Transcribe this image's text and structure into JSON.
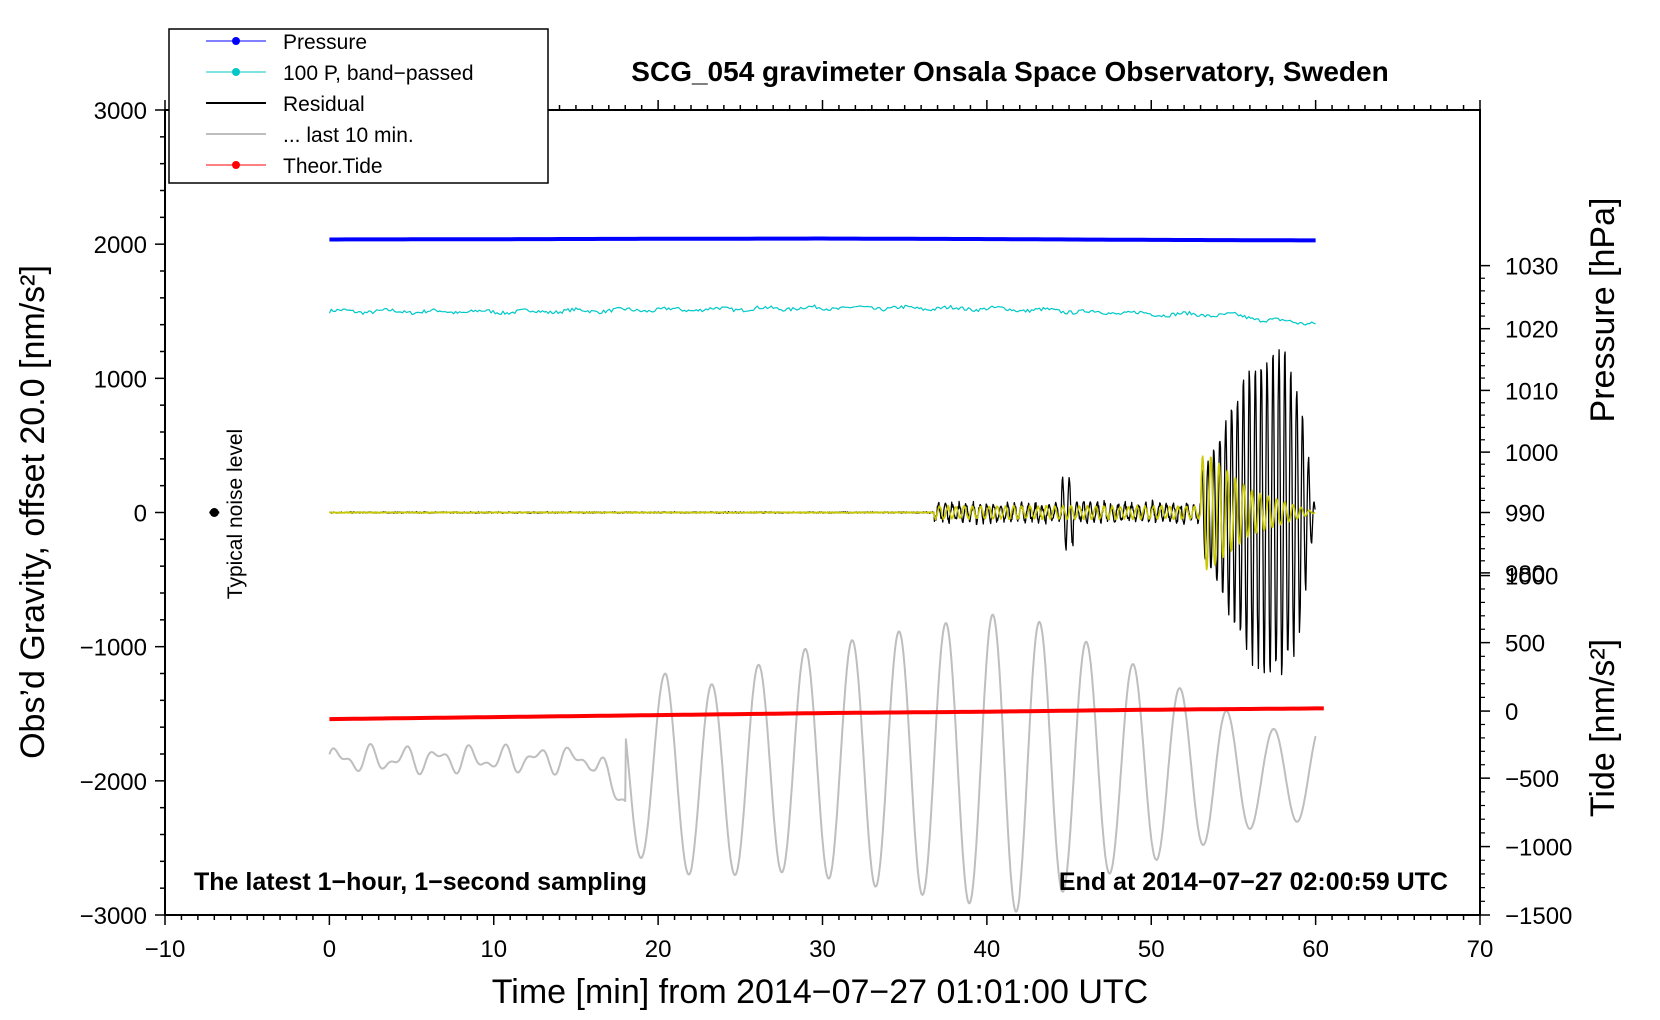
{
  "chart_data": {
    "type": "line",
    "title": "SCG_054 gravimeter Onsala Space Observatory, Sweden",
    "xlabel": "Time [min] from 2014−07−27 01:01:00 UTC",
    "ylabel": "Obs’d Gravity, offset 20.0 [nm/s²]",
    "xlim": [
      -10,
      70
    ],
    "ylim": [
      -3000,
      3000
    ],
    "x_ticks": [
      -10,
      0,
      10,
      20,
      30,
      40,
      50,
      60,
      70
    ],
    "x_tick_labels": [
      "−10",
      "0",
      "10",
      "20",
      "30",
      "40",
      "50",
      "60",
      "70"
    ],
    "y_ticks": [
      -3000,
      -2000,
      -1000,
      0,
      1000,
      2000,
      3000
    ],
    "y_tick_labels": [
      "−3000",
      "−2000",
      "−1000",
      "0",
      "1000",
      "2000",
      "3000"
    ],
    "right_axes": [
      {
        "label": "Pressure [hPa]",
        "ticks": [
          980,
          990,
          1000,
          1010,
          1020,
          1030
        ],
        "tick_labels": [
          "980",
          "990",
          "1000",
          "1010",
          "1020",
          "1030"
        ],
        "primary_equiv": [
          -450,
          0,
          450,
          910,
          1370,
          1840
        ]
      },
      {
        "label": "Tide [nm/s²]",
        "ticks": [
          -1500,
          -1000,
          -500,
          0,
          500,
          1000
        ],
        "tick_labels": [
          "−1500",
          "−1000",
          "−500",
          "0",
          "500",
          "1000"
        ],
        "primary_equiv": [
          -3000,
          -2490,
          -1980,
          -1480,
          -970,
          -470
        ]
      }
    ],
    "legend": {
      "position": "top-left",
      "entries": [
        {
          "label": "Pressure",
          "color": "#0000ff",
          "marker": true
        },
        {
          "label": "100 P, band−passed",
          "color": "#00c8c8",
          "marker": true
        },
        {
          "label": "Residual",
          "color": "#000000",
          "marker": false
        },
        {
          "label": "... last 10 min.",
          "color": "#bebebe",
          "marker": false
        },
        {
          "label": "Theor.Tide",
          "color": "#ff0000",
          "marker": true
        }
      ]
    },
    "series": [
      {
        "name": "Pressure",
        "color": "#0000ff",
        "x": [
          0,
          10,
          20,
          30,
          40,
          50,
          55,
          60
        ],
        "values": [
          2035,
          2037,
          2040,
          2042,
          2038,
          2032,
          2030,
          2028
        ]
      },
      {
        "name": "100 P, band−passed",
        "color": "#00c8c8",
        "x": [
          0,
          10,
          20,
          30,
          40,
          45,
          50,
          55,
          57,
          60
        ],
        "values": [
          1500,
          1495,
          1510,
          1525,
          1520,
          1500,
          1480,
          1470,
          1435,
          1410
        ]
      },
      {
        "name": "Residual",
        "color": "#000000",
        "x": [
          0,
          36.8,
          45,
          52,
          53.5,
          56,
          58,
          59,
          60
        ],
        "values": [
          0,
          0,
          40,
          60,
          430,
          1150,
          1310,
          1000,
          0
        ]
      },
      {
        "name": "... last 10 min.",
        "color": "#bebebe",
        "x": [
          0,
          2,
          10,
          17,
          18.5,
          20.5,
          22,
          28,
          34.6,
          42,
          47.5,
          50,
          52.5,
          55.5,
          58,
          60
        ],
        "values": [
          -1850,
          -1720,
          -1880,
          -1920,
          -2190,
          -1270,
          -2500,
          -1340,
          -1300,
          -1300,
          -1380,
          -1630,
          -1820,
          -2000,
          -2050,
          -1900
        ]
      },
      {
        "name": "Theor.Tide",
        "color": "#ff0000",
        "x": [
          0,
          10,
          20,
          30,
          40,
          50,
          60.5
        ],
        "values": [
          -1540,
          -1525,
          -1510,
          -1495,
          -1485,
          -1470,
          -1460
        ]
      },
      {
        "name": "Yellow filtered",
        "color": "#c8c800",
        "x": [
          0,
          36.8,
          53.5,
          56,
          60
        ],
        "values": [
          0,
          0,
          430,
          170,
          0
        ]
      }
    ],
    "annotations": [
      {
        "text": "Typical noise level",
        "x": -7,
        "y": 0
      },
      {
        "text": "The latest 1−hour, 1−second sampling",
        "position": "bottom-left"
      },
      {
        "text": "End at 2014−07−27 02:00:59 UTC",
        "position": "bottom-right"
      }
    ]
  }
}
